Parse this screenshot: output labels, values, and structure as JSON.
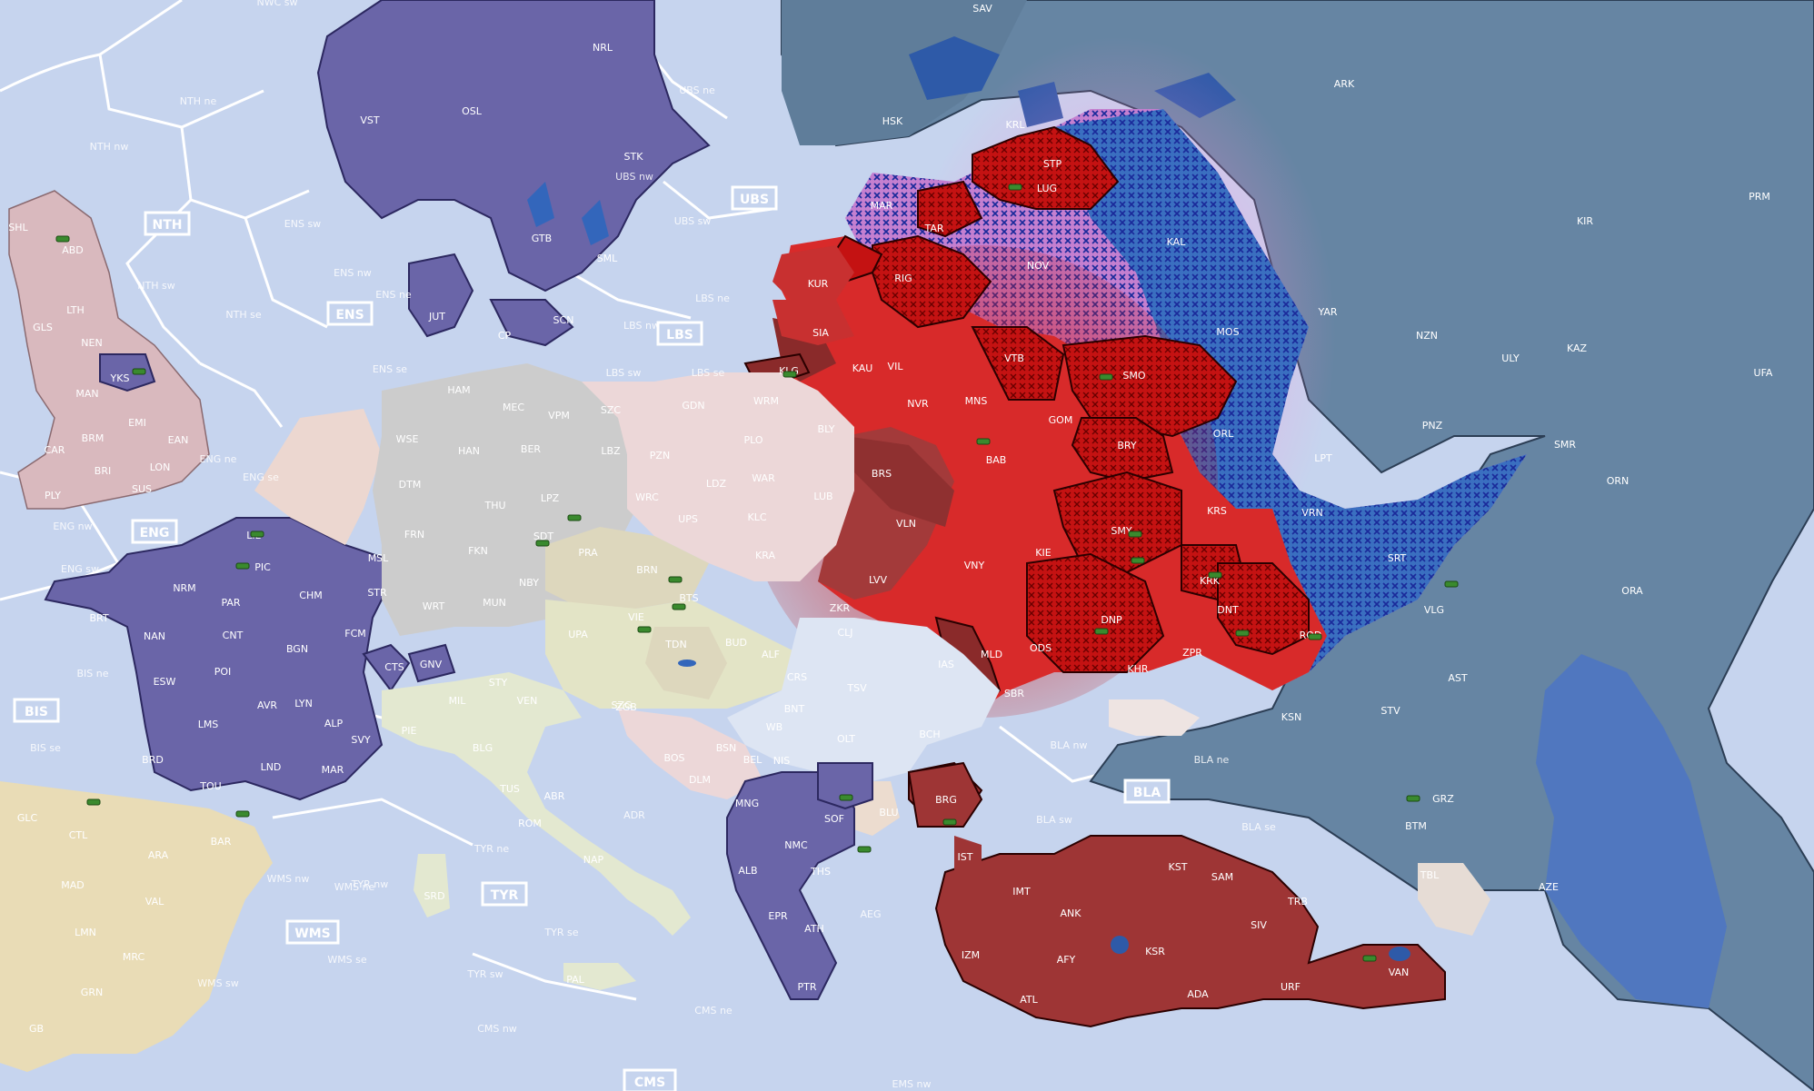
{
  "sea_zones": [
    {
      "label": "NTH",
      "id": "nth"
    },
    {
      "label": "ENS",
      "id": "ens"
    },
    {
      "label": "ENG",
      "id": "eng"
    },
    {
      "label": "BIS",
      "id": "bis"
    },
    {
      "label": "UBS",
      "id": "ubs"
    },
    {
      "label": "LBS",
      "id": "lbs"
    },
    {
      "label": "BLA",
      "id": "bla"
    },
    {
      "label": "TYR",
      "id": "tyr"
    },
    {
      "label": "WMS",
      "id": "wms"
    },
    {
      "label": "CMS",
      "id": "cms"
    }
  ],
  "sea_sublabels": [
    "NWC sw",
    "NTH ne",
    "NTH nw",
    "NTH sw",
    "NTH se",
    "ENS nw",
    "ENS ne",
    "ENS sw",
    "ENS se",
    "UBS ne",
    "UBS nw",
    "UBS sw",
    "LBS ne",
    "LBS nw",
    "LBS sw",
    "LBS se",
    "ENG ne",
    "ENG se",
    "ENG nw",
    "ENG sw",
    "BIS ne",
    "BIS se",
    "BLA nw",
    "BLA ne",
    "BLA sw",
    "BLA se",
    "TYR ne",
    "TYR nw",
    "TYR se",
    "TYR sw",
    "WMS nw",
    "WMS ne",
    "WMS se",
    "WMS sw",
    "ADR",
    "CMS nw",
    "CMS ne",
    "EMS nw",
    "AEG"
  ],
  "regions": {
    "russia": [
      "SAV",
      "ARK",
      "HSK",
      "KRL",
      "PRM",
      "KIR",
      "YAR",
      "NZN",
      "ULY",
      "KAZ",
      "UFA",
      "SMR",
      "ORN",
      "PNZ",
      "LPT",
      "ORA",
      "AST",
      "STV",
      "GRZ",
      "BTM",
      "TBL",
      "AZE",
      "KSN",
      "TRB",
      "VLG",
      "SRT"
    ],
    "contested": [
      "STP",
      "LUG",
      "MAR",
      "TAR",
      "NOV",
      "KAL",
      "MOS",
      "ORL",
      "KRS",
      "VRN",
      "KIE",
      "ROD"
    ],
    "red": [
      "RIG",
      "KUR",
      "SIA",
      "KAU",
      "VIL",
      "KLG",
      "NVR",
      "MNS",
      "VTB",
      "SMO",
      "GOM",
      "BRY",
      "BAB",
      "BRS",
      "VLN",
      "LVV",
      "VNY",
      "SMY",
      "KRK",
      "DNP",
      "DNT",
      "ODS",
      "ZPR",
      "KHR",
      "ZKR",
      "MLD",
      "SBR",
      "BRG",
      "IST",
      "KST",
      "SAM",
      "IMT",
      "ANK",
      "SIV",
      "IZM",
      "AFY",
      "KSR",
      "ATL",
      "ADA",
      "URF",
      "VAN"
    ],
    "scandinavia_france": [
      "NRL",
      "VST",
      "OSL",
      "STK",
      "GTB",
      "SML",
      "JUT",
      "SCN",
      "CP",
      "YKS",
      "LIL",
      "PIC",
      "BRT",
      "NRM",
      "PAR",
      "CHM",
      "STR",
      "NAN",
      "CNT",
      "BGN",
      "FCM",
      "POI",
      "CTS",
      "GNV",
      "ESW",
      "AVR",
      "LYN",
      "ALP",
      "LMS",
      "SVY",
      "BRD",
      "MAR",
      "TOU",
      "LND",
      "ALB",
      "NMC",
      "THS",
      "EPR",
      "ATH",
      "PTR",
      "SOF"
    ],
    "germany": [
      "HAM",
      "MEC",
      "VPM",
      "WSE",
      "HAN",
      "BER",
      "DTM",
      "THU",
      "FRN",
      "FKN",
      "MSL",
      "WRT",
      "MUN",
      "NBY",
      "LPZ"
    ],
    "poland": [
      "SZC",
      "GDN",
      "WRM",
      "PLO",
      "BLY",
      "LBZ",
      "PZN",
      "WAR",
      "LDZ",
      "LUB",
      "WRC",
      "UPS",
      "KLC",
      "KRA"
    ],
    "britain": [
      "SHL",
      "ABD",
      "LTH",
      "GLS",
      "NEN",
      "MAN",
      "EMI",
      "BRM",
      "EAN",
      "BRI",
      "LON",
      "SUS",
      "PLY",
      "CAR"
    ],
    "iberia": [
      "GLC",
      "CTL",
      "ARA",
      "BAR",
      "MAD",
      "VAL",
      "LMN",
      "MRC",
      "GRN",
      "GB"
    ],
    "italy": [
      "PIE",
      "MIL",
      "STY",
      "VEN",
      "BLG",
      "TUS",
      "ABR",
      "ROM",
      "NAP",
      "SRD",
      "PAL"
    ],
    "balkans": [
      "UPA",
      "VIE",
      "BTS",
      "TDN",
      "BUD",
      "ALF",
      "CLJ",
      "IAS",
      "CRS",
      "TSV",
      "BNT",
      "OLT",
      "BCH",
      "BSN",
      "BEL",
      "NIS",
      "BOS",
      "SZG",
      "ZGB",
      "WB",
      "DLM",
      "MNG",
      "BLU"
    ],
    "czech": [
      "SDT",
      "PRA",
      "BRN"
    ]
  }
}
